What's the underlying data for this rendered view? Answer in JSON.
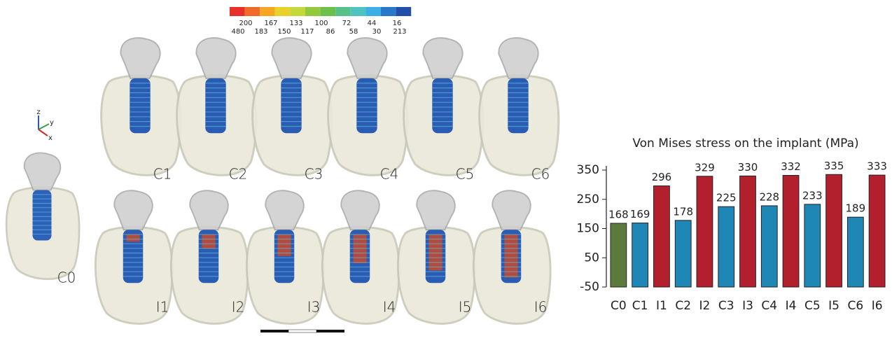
{
  "colorbar": {
    "top_labels": [
      "200",
      "167",
      "133",
      "100",
      "72",
      "44",
      "16"
    ],
    "bottom_labels": [
      "480",
      "183",
      "150",
      "117",
      "86",
      "58",
      "30",
      "213"
    ]
  },
  "axes_triad": [
    "z",
    "y",
    "x"
  ],
  "panels": {
    "reference": "C0",
    "top": [
      "C1",
      "C2",
      "C3",
      "C4",
      "C5",
      "C6"
    ],
    "bottom": [
      "I1",
      "I2",
      "I3",
      "I4",
      "I5",
      "I6"
    ]
  },
  "chart_data": {
    "type": "bar",
    "title": "Von Mises stress on the implant (MPa)",
    "categories": [
      "C0",
      "C1",
      "I1",
      "C2",
      "I2",
      "C3",
      "I3",
      "C4",
      "I4",
      "C5",
      "I5",
      "C6",
      "I6"
    ],
    "values": [
      168,
      169,
      296,
      178,
      329,
      225,
      330,
      228,
      332,
      233,
      335,
      189,
      333
    ],
    "colors": [
      "#5b7a3c",
      "#1f87b6",
      "#b3202d",
      "#1f87b6",
      "#b3202d",
      "#1f87b6",
      "#b3202d",
      "#1f87b6",
      "#b3202d",
      "#1f87b6",
      "#b3202d",
      "#1f87b6",
      "#b3202d"
    ],
    "ylim": [
      -50,
      350
    ],
    "yticks": [
      -50,
      50,
      150,
      250,
      350
    ]
  }
}
